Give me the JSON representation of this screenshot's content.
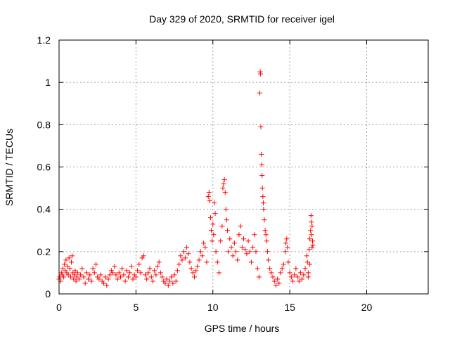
{
  "chart_data": {
    "type": "scatter",
    "title": "Day 329 of 2020, SRMTID for receiver igel",
    "xlabel": "GPS time / hours",
    "ylabel": "SRMTID / TECUs",
    "xlim": [
      0,
      24
    ],
    "ylim": [
      0,
      1.2
    ],
    "x_ticks": [
      0,
      5,
      10,
      15,
      20
    ],
    "x_tick_labels": [
      "0",
      "5",
      "10",
      "15",
      "20"
    ],
    "y_ticks": [
      0,
      0.2,
      0.4,
      0.6,
      0.8,
      1,
      1.2
    ],
    "y_tick_labels": [
      "0",
      "0.2",
      "0.4",
      "0.6",
      "0.8",
      "1",
      "1.2"
    ],
    "grid": true,
    "marker": "plus",
    "series": [
      {
        "name": "SRMTID",
        "color": "#ff0000",
        "points": [
          [
            0.0,
            0.07
          ],
          [
            0.05,
            0.08
          ],
          [
            0.1,
            0.06
          ],
          [
            0.15,
            0.1
          ],
          [
            0.2,
            0.09
          ],
          [
            0.25,
            0.12
          ],
          [
            0.3,
            0.08
          ],
          [
            0.35,
            0.14
          ],
          [
            0.4,
            0.11
          ],
          [
            0.45,
            0.16
          ],
          [
            0.5,
            0.1
          ],
          [
            0.55,
            0.13
          ],
          [
            0.6,
            0.09
          ],
          [
            0.65,
            0.17
          ],
          [
            0.7,
            0.12
          ],
          [
            0.75,
            0.08
          ],
          [
            0.8,
            0.15
          ],
          [
            0.85,
            0.18
          ],
          [
            0.9,
            0.1
          ],
          [
            0.95,
            0.07
          ],
          [
            1.0,
            0.09
          ],
          [
            1.05,
            0.11
          ],
          [
            1.1,
            0.06
          ],
          [
            1.15,
            0.08
          ],
          [
            1.2,
            0.1
          ],
          [
            1.3,
            0.07
          ],
          [
            1.4,
            0.09
          ],
          [
            1.5,
            0.12
          ],
          [
            1.6,
            0.08
          ],
          [
            1.7,
            0.05
          ],
          [
            1.8,
            0.1
          ],
          [
            1.9,
            0.07
          ],
          [
            2.0,
            0.09
          ],
          [
            2.1,
            0.06
          ],
          [
            2.2,
            0.12
          ],
          [
            2.3,
            0.1
          ],
          [
            2.4,
            0.14
          ],
          [
            2.5,
            0.08
          ],
          [
            2.6,
            0.07
          ],
          [
            2.7,
            0.09
          ],
          [
            2.8,
            0.06
          ],
          [
            2.9,
            0.05
          ],
          [
            3.0,
            0.08
          ],
          [
            3.1,
            0.04
          ],
          [
            3.2,
            0.07
          ],
          [
            3.3,
            0.09
          ],
          [
            3.4,
            0.11
          ],
          [
            3.5,
            0.1
          ],
          [
            3.6,
            0.13
          ],
          [
            3.7,
            0.09
          ],
          [
            3.8,
            0.07
          ],
          [
            3.9,
            0.1
          ],
          [
            4.0,
            0.08
          ],
          [
            4.1,
            0.12
          ],
          [
            4.2,
            0.09
          ],
          [
            4.3,
            0.06
          ],
          [
            4.4,
            0.11
          ],
          [
            4.5,
            0.08
          ],
          [
            4.6,
            0.1
          ],
          [
            4.7,
            0.13
          ],
          [
            4.8,
            0.07
          ],
          [
            4.9,
            0.09
          ],
          [
            5.0,
            0.08
          ],
          [
            5.1,
            0.11
          ],
          [
            5.2,
            0.14
          ],
          [
            5.3,
            0.1
          ],
          [
            5.4,
            0.17
          ],
          [
            5.5,
            0.18
          ],
          [
            5.6,
            0.09
          ],
          [
            5.7,
            0.07
          ],
          [
            5.8,
            0.1
          ],
          [
            5.9,
            0.12
          ],
          [
            6.0,
            0.08
          ],
          [
            6.1,
            0.06
          ],
          [
            6.2,
            0.11
          ],
          [
            6.3,
            0.09
          ],
          [
            6.4,
            0.13
          ],
          [
            6.5,
            0.15
          ],
          [
            6.6,
            0.1
          ],
          [
            6.7,
            0.08
          ],
          [
            6.8,
            0.06
          ],
          [
            6.9,
            0.05
          ],
          [
            7.0,
            0.07
          ],
          [
            7.1,
            0.04
          ],
          [
            7.2,
            0.06
          ],
          [
            7.3,
            0.08
          ],
          [
            7.4,
            0.05
          ],
          [
            7.5,
            0.09
          ],
          [
            7.6,
            0.06
          ],
          [
            7.7,
            0.11
          ],
          [
            7.8,
            0.14
          ],
          [
            7.9,
            0.18
          ],
          [
            8.0,
            0.16
          ],
          [
            8.1,
            0.2
          ],
          [
            8.2,
            0.17
          ],
          [
            8.3,
            0.22
          ],
          [
            8.4,
            0.19
          ],
          [
            8.5,
            0.15
          ],
          [
            8.6,
            0.12
          ],
          [
            8.7,
            0.1
          ],
          [
            8.8,
            0.08
          ],
          [
            8.9,
            0.11
          ],
          [
            9.0,
            0.13
          ],
          [
            9.1,
            0.16
          ],
          [
            9.2,
            0.2
          ],
          [
            9.3,
            0.18
          ],
          [
            9.4,
            0.24
          ],
          [
            9.5,
            0.22
          ],
          [
            9.6,
            0.15
          ],
          [
            9.7,
            0.46
          ],
          [
            9.75,
            0.48
          ],
          [
            9.8,
            0.44
          ],
          [
            9.85,
            0.36
          ],
          [
            9.9,
            0.3
          ],
          [
            9.95,
            0.25
          ],
          [
            10.0,
            0.33
          ],
          [
            10.05,
            0.28
          ],
          [
            10.1,
            0.43
          ],
          [
            10.15,
            0.38
          ],
          [
            10.2,
            0.2
          ],
          [
            10.3,
            0.15
          ],
          [
            10.4,
            0.1
          ],
          [
            10.5,
            0.25
          ],
          [
            10.6,
            0.32
          ],
          [
            10.65,
            0.5
          ],
          [
            10.7,
            0.52
          ],
          [
            10.75,
            0.54
          ],
          [
            10.8,
            0.48
          ],
          [
            10.85,
            0.4
          ],
          [
            10.9,
            0.35
          ],
          [
            10.95,
            0.3
          ],
          [
            11.0,
            0.2
          ],
          [
            11.1,
            0.26
          ],
          [
            11.2,
            0.22
          ],
          [
            11.3,
            0.18
          ],
          [
            11.4,
            0.24
          ],
          [
            11.5,
            0.2
          ],
          [
            11.6,
            0.16
          ],
          [
            11.7,
            0.28
          ],
          [
            11.8,
            0.32
          ],
          [
            11.9,
            0.22
          ],
          [
            12.0,
            0.26
          ],
          [
            12.1,
            0.21
          ],
          [
            12.2,
            0.19
          ],
          [
            12.3,
            0.25
          ],
          [
            12.4,
            0.2
          ],
          [
            12.5,
            0.15
          ],
          [
            12.6,
            0.22
          ],
          [
            12.7,
            0.28
          ],
          [
            12.8,
            0.2
          ],
          [
            12.9,
            0.12
          ],
          [
            13.0,
            0.08
          ],
          [
            13.05,
            0.95
          ],
          [
            13.08,
            1.05
          ],
          [
            13.1,
            1.04
          ],
          [
            13.12,
            0.79
          ],
          [
            13.15,
            0.66
          ],
          [
            13.18,
            0.61
          ],
          [
            13.2,
            0.56
          ],
          [
            13.22,
            0.5
          ],
          [
            13.25,
            0.46
          ],
          [
            13.28,
            0.43
          ],
          [
            13.3,
            0.4
          ],
          [
            13.35,
            0.35
          ],
          [
            13.4,
            0.3
          ],
          [
            13.45,
            0.28
          ],
          [
            13.5,
            0.25
          ],
          [
            13.55,
            0.2
          ],
          [
            13.6,
            0.16
          ],
          [
            13.7,
            0.12
          ],
          [
            13.8,
            0.1
          ],
          [
            13.9,
            0.08
          ],
          [
            14.0,
            0.06
          ],
          [
            14.1,
            0.04
          ],
          [
            14.2,
            0.07
          ],
          [
            14.3,
            0.05
          ],
          [
            14.4,
            0.1
          ],
          [
            14.5,
            0.12
          ],
          [
            14.6,
            0.14
          ],
          [
            14.7,
            0.2
          ],
          [
            14.75,
            0.24
          ],
          [
            14.8,
            0.26
          ],
          [
            14.85,
            0.22
          ],
          [
            14.9,
            0.15
          ],
          [
            15.0,
            0.1
          ],
          [
            15.1,
            0.08
          ],
          [
            15.2,
            0.06
          ],
          [
            15.3,
            0.09
          ],
          [
            15.4,
            0.12
          ],
          [
            15.5,
            0.08
          ],
          [
            15.6,
            0.06
          ],
          [
            15.7,
            0.1
          ],
          [
            15.8,
            0.07
          ],
          [
            15.9,
            0.09
          ],
          [
            16.0,
            0.12
          ],
          [
            16.1,
            0.18
          ],
          [
            16.15,
            0.15
          ],
          [
            16.2,
            0.1
          ],
          [
            16.25,
            0.21
          ],
          [
            16.3,
            0.26
          ],
          [
            16.35,
            0.3
          ],
          [
            16.38,
            0.37
          ],
          [
            16.4,
            0.34
          ],
          [
            16.42,
            0.28
          ],
          [
            16.45,
            0.22
          ],
          [
            16.48,
            0.25
          ],
          [
            16.5,
            0.23
          ],
          [
            16.45,
            0.32
          ],
          [
            16.3,
            0.14
          ],
          [
            16.2,
            0.08
          ]
        ]
      }
    ]
  }
}
